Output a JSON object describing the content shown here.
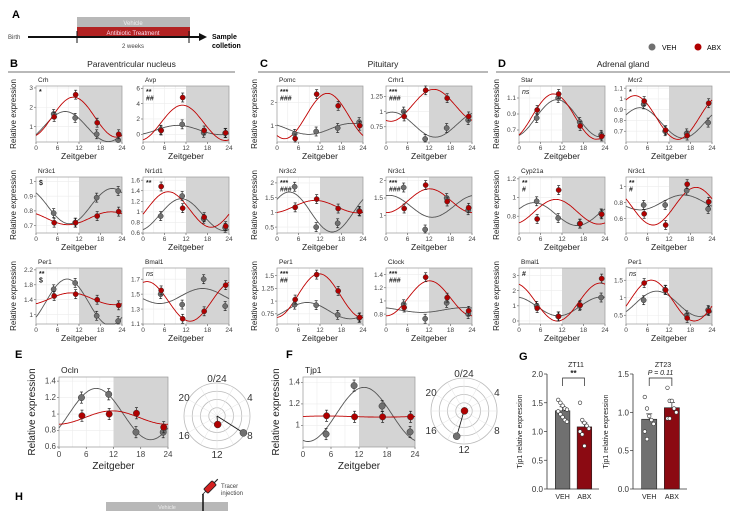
{
  "panel_a": {
    "letter": "A",
    "birth": "Birth",
    "vehicle": "Vehicle",
    "treatment": "Antibiotic Treatment",
    "duration": "2 weeks",
    "endpoint_line1": "Sample",
    "endpoint_line2": "colletion"
  },
  "legend": {
    "items": [
      {
        "label": "VEH",
        "color": "#707070"
      },
      {
        "label": "ABX",
        "color": "#b00000"
      }
    ]
  },
  "sections": [
    {
      "letter": "B",
      "title": "Paraventricular nucleus"
    },
    {
      "letter": "C",
      "title": "Pituitary"
    },
    {
      "letter": "D",
      "title": "Adrenal gland"
    },
    {
      "letter": "E"
    },
    {
      "letter": "F"
    },
    {
      "letter": "G"
    },
    {
      "letter": "H"
    }
  ],
  "common": {
    "xlabel": "Zeitgeber",
    "ylabel": "Relative expression",
    "xticks": [
      0,
      6,
      12,
      18,
      24
    ],
    "zt": [
      5,
      11,
      17,
      23
    ],
    "polar_labels": [
      "0/24",
      "4",
      "8",
      "12",
      "16",
      "20"
    ],
    "colors": {
      "veh": "#707070",
      "abx": "#b00000",
      "dark_phase": "#d4d4d4"
    }
  },
  "chart_data": [
    {
      "type": "scatter",
      "title": "Crh",
      "stats": [
        "*"
      ],
      "yticks": [
        1,
        2,
        3
      ],
      "ylim": [
        0.2,
        3.1
      ],
      "veh": [
        1.65,
        1.45,
        0.6,
        0.3
      ],
      "abx": [
        1.5,
        2.65,
        1.2,
        0.6
      ]
    },
    {
      "type": "scatter",
      "title": "Avp",
      "stats": [
        "**",
        "##"
      ],
      "yticks": [
        0,
        2,
        4,
        6
      ],
      "ylim": [
        -1,
        6.3
      ],
      "veh": [
        0.6,
        1.3,
        0.2,
        0.15
      ],
      "abx": [
        0.5,
        4.8,
        0.5,
        0.2
      ]
    },
    {
      "type": "scatter",
      "title": "Nr3c1",
      "stats": [
        "$"
      ],
      "yticks": [
        0.7,
        0.8,
        0.9,
        1.0
      ],
      "ylim": [
        0.65,
        1.03
      ],
      "veh": [
        0.785,
        0.72,
        0.89,
        0.935
      ],
      "abx": [
        0.72,
        0.72,
        0.765,
        0.795
      ]
    },
    {
      "type": "scatter",
      "title": "Nr1d1",
      "stats": [
        "**"
      ],
      "yticks": [
        0.6,
        0.8,
        1.0,
        1.2,
        1.4,
        1.6
      ],
      "ylim": [
        0.6,
        1.66
      ],
      "veh": [
        0.92,
        1.3,
        0.87,
        0.7
      ],
      "abx": [
        1.48,
        1.07,
        0.9,
        0.73
      ]
    },
    {
      "type": "scatter",
      "title": "Per1",
      "stats": [
        "**",
        "$"
      ],
      "yticks": [
        1.0,
        1.4,
        1.8,
        2.2
      ],
      "ylim": [
        0.75,
        2.25
      ],
      "veh": [
        1.68,
        1.85,
        0.97,
        0.83
      ],
      "abx": [
        1.5,
        1.55,
        1.4,
        1.25
      ]
    },
    {
      "type": "scatter",
      "title": "Bmal1",
      "stats": [
        "ns"
      ],
      "yticks": [
        1.1,
        1.3,
        1.5,
        1.7
      ],
      "ylim": [
        1.1,
        1.85
      ],
      "veh": [
        1.5,
        1.36,
        1.7,
        1.34
      ],
      "abx": [
        1.55,
        1.17,
        1.27,
        1.62
      ]
    },
    {
      "type": "scatter",
      "title": "Pomc",
      "stats": [
        "***",
        "###"
      ],
      "yticks": [
        1,
        2
      ],
      "ylim": [
        0.3,
        2.7
      ],
      "veh": [
        0.65,
        0.75,
        0.9,
        1.15
      ],
      "abx": [
        0.45,
        2.35,
        1.85,
        1.0
      ]
    },
    {
      "type": "scatter",
      "title": "Crhr1",
      "stats": [
        "***",
        "###"
      ],
      "yticks": [
        0.75,
        1.0,
        1.25
      ],
      "ylim": [
        0.5,
        1.42
      ],
      "veh": [
        1.0,
        0.55,
        0.73,
        0.86
      ],
      "abx": [
        0.92,
        1.35,
        1.22,
        0.92
      ]
    },
    {
      "type": "scatter",
      "title": "Nr3c2",
      "stats": [
        "***",
        "###"
      ],
      "yticks": [
        0.5,
        1.0,
        1.5,
        2.0
      ],
      "ylim": [
        0.3,
        2.2
      ],
      "veh": [
        1.87,
        0.5,
        0.63,
        1.05
      ],
      "abx": [
        1.17,
        1.45,
        1.13,
        1.03
      ]
    },
    {
      "type": "scatter",
      "title": "Nr3c1",
      "stats": [
        "***",
        "###"
      ],
      "yticks": [
        1.0,
        1.5,
        2.0
      ],
      "ylim": [
        0.5,
        2.1
      ],
      "veh": [
        1.8,
        0.6,
        1.5,
        1.15
      ],
      "abx": [
        1.2,
        1.87,
        1.4,
        1.22
      ]
    },
    {
      "type": "scatter",
      "title": "Per1",
      "stats": [
        "***",
        "##"
      ],
      "yticks": [
        0.75,
        1.0,
        1.25,
        1.5
      ],
      "ylim": [
        0.55,
        1.65
      ],
      "veh": [
        0.93,
        0.92,
        0.73,
        0.67
      ],
      "abx": [
        1.03,
        1.52,
        1.2,
        0.68
      ]
    },
    {
      "type": "scatter",
      "title": "Clock",
      "stats": [
        "***",
        "###"
      ],
      "yticks": [
        0.8,
        1.0,
        1.2,
        1.4
      ],
      "ylim": [
        0.65,
        1.5
      ],
      "veh": [
        0.95,
        0.73,
        0.97,
        0.8
      ],
      "abx": [
        0.9,
        1.36,
        1.05,
        0.85
      ]
    },
    {
      "type": "scatter",
      "title": "Star",
      "stats": [
        "ns"
      ],
      "yticks": [
        0.7,
        0.9,
        1.1
      ],
      "ylim": [
        0.55,
        1.25
      ],
      "veh": [
        0.85,
        1.1,
        0.8,
        0.64
      ],
      "abx": [
        0.95,
        1.15,
        0.75,
        0.62
      ]
    },
    {
      "type": "scatter",
      "title": "Mcr2",
      "stats": [
        "*"
      ],
      "yticks": [
        0.7,
        0.8,
        0.9,
        1.0,
        1.1
      ],
      "ylim": [
        0.6,
        1.12
      ],
      "veh": [
        0.95,
        0.7,
        0.68,
        0.78
      ],
      "abx": [
        0.98,
        0.71,
        0.66,
        0.96
      ]
    },
    {
      "type": "scatter",
      "title": "Cyp21a",
      "stats": [
        "**",
        "#"
      ],
      "yticks": [
        0.8,
        1.0,
        1.2
      ],
      "ylim": [
        0.62,
        1.22
      ],
      "veh": [
        0.96,
        0.78,
        0.72,
        0.83
      ],
      "abx": [
        0.77,
        1.08,
        0.72,
        0.82
      ]
    },
    {
      "type": "scatter",
      "title": "Nr3c1",
      "stats": [
        "**",
        "#"
      ],
      "yticks": [
        0.6,
        0.8,
        1.0
      ],
      "ylim": [
        0.42,
        1.12
      ],
      "veh": [
        0.77,
        0.77,
        0.95,
        0.72
      ],
      "abx": [
        0.66,
        0.52,
        1.03,
        0.81
      ]
    },
    {
      "type": "scatter",
      "title": "Bmal1",
      "stats": [
        "#"
      ],
      "yticks": [
        0,
        1,
        2,
        3
      ],
      "ylim": [
        -0.2,
        3.5
      ],
      "veh": [
        1.0,
        0.3,
        1.0,
        1.55
      ],
      "abx": [
        0.85,
        0.3,
        1.05,
        2.8
      ]
    },
    {
      "type": "scatter",
      "title": "Per1",
      "stats": [
        "ns"
      ],
      "yticks": [
        0.5,
        1.0,
        1.5
      ],
      "ylim": [
        0.25,
        1.85
      ],
      "veh": [
        0.93,
        1.23,
        0.5,
        0.65
      ],
      "abx": [
        1.42,
        1.22,
        0.42,
        0.62
      ]
    },
    {
      "type": "scatter",
      "title": "Ocln",
      "stats": [],
      "yticks": [
        0.6,
        0.8,
        1.0,
        1.2,
        1.4
      ],
      "ylim": [
        0.6,
        1.45
      ],
      "veh": [
        1.2,
        1.24,
        0.78,
        0.78
      ],
      "abx": [
        0.98,
        1.0,
        1.01,
        0.84
      ]
    },
    {
      "type": "scatter",
      "title": "Tjp1",
      "stats": [],
      "yticks": [
        1.0,
        1.2,
        1.4
      ],
      "ylim": [
        0.8,
        1.45
      ],
      "veh": [
        0.92,
        1.37,
        1.18,
        0.94
      ],
      "abx": [
        1.09,
        1.08,
        1.08,
        1.08
      ]
    },
    {
      "type": "bar",
      "title": "ZT11",
      "ylabel": "Tjp1 relative expression",
      "categories": [
        "VEH",
        "ABX"
      ],
      "values": [
        1.36,
        1.08
      ],
      "ylim": [
        0,
        2
      ],
      "yticks": [
        0.0,
        0.5,
        1.0,
        1.5,
        2.0
      ],
      "annotation": "**",
      "annotation_italic": false,
      "points": [
        [
          1.55,
          1.5,
          1.45,
          1.4,
          1.38,
          1.35,
          1.3,
          1.25,
          1.2,
          1.17
        ],
        [
          1.5,
          1.2,
          1.15,
          1.1,
          1.05,
          1.0,
          0.95,
          0.75
        ]
      ]
    },
    {
      "type": "bar",
      "title": "ZT23",
      "ylabel": "Tjp1 relative expression",
      "categories": [
        "VEH",
        "ABX"
      ],
      "values": [
        0.91,
        1.06
      ],
      "ylim": [
        0,
        1.5
      ],
      "yticks": [
        0.0,
        0.5,
        1.0,
        1.5
      ],
      "annotation": "P = 0.11",
      "annotation_italic": true,
      "points": [
        [
          1.2,
          1.05,
          0.95,
          0.9,
          0.85,
          0.75,
          0.65
        ],
        [
          1.32,
          1.15,
          1.15,
          1.05,
          1.0,
          0.92,
          0.92
        ]
      ]
    }
  ],
  "panel_h": {
    "vehicle": "Vehicle",
    "tracer_line1": "Tracer",
    "tracer_line2": "injection"
  }
}
